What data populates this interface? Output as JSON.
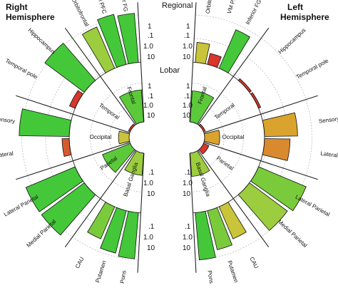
{
  "chart_data": {
    "type": "radial-bar",
    "headings": {
      "right_hemisphere": [
        "Right",
        "Hemisphere"
      ],
      "left_hemisphere": [
        "Left",
        "Hemisphere"
      ],
      "regional": "Regional",
      "lobar": "Lobar"
    },
    "scale": {
      "type": "log",
      "ticks": [
        ".1",
        "1.0",
        "10"
      ],
      "regional_axis": [
        "1",
        ".1",
        "1.0",
        "10"
      ],
      "lobar_axis": [
        "1",
        ".1",
        "1.0",
        "10"
      ],
      "lower_axis": [
        ".1",
        "1.0",
        "10",
        ".1",
        "1.0",
        "10"
      ]
    },
    "right_lobar": [
      {
        "label": "Frontal",
        "value": 4.5,
        "color": "#5cc93a"
      },
      {
        "label": "Temporal",
        "value": 0.12,
        "color": "#d8362b"
      },
      {
        "label": "Occipital",
        "value": 0.35,
        "color": "#c9c43a"
      },
      {
        "label": "Parietal",
        "value": 3.5,
        "color": "#5cc93a"
      },
      {
        "label": "Basal Ganglia",
        "value": 1.4,
        "color": "#9ccd3e"
      }
    ],
    "left_lobar": [
      {
        "label": "Frontal",
        "value": 4.0,
        "color": "#5cc93a"
      },
      {
        "label": "Temporal",
        "value": 0.1,
        "color": "#d8362b"
      },
      {
        "label": "Occipital",
        "value": 0.6,
        "color": "#d9a32e"
      },
      {
        "label": "Parietal",
        "value": 0.2,
        "color": "#d8362b"
      },
      {
        "label": "Basal Ganglia",
        "value": 1.6,
        "color": "#9ccd3e"
      }
    ],
    "right_regional": [
      {
        "label": "Inferior FG",
        "value": 12,
        "color": "#45c73a"
      },
      {
        "label": "VM PFC",
        "value": 15,
        "color": "#45c73a"
      },
      {
        "label": "Orbitofrontal",
        "value": 8,
        "color": "#9ccd3e"
      },
      {
        "label": "Hippocampus",
        "value": 12,
        "color": "#45c73a"
      },
      {
        "label": "Temporal pole",
        "value": 0.18,
        "color": "#d8362b"
      },
      {
        "label": "Sensory",
        "value": 13,
        "color": "#45c73a"
      },
      {
        "label": "Lateral",
        "value": 0.2,
        "color": "#d65a2e"
      },
      {
        "label": "Lateral Parietal",
        "value": 18,
        "color": "#45c73a"
      },
      {
        "label": "Medial Parietal",
        "value": 18,
        "color": "#45c73a"
      },
      {
        "label": "CAU",
        "value": 3,
        "color": "#7acb3c"
      },
      {
        "label": "Putamen",
        "value": 7,
        "color": "#45c73a"
      },
      {
        "label": "Pons",
        "value": 9,
        "color": "#45c73a"
      }
    ],
    "left_regional": [
      {
        "label": "Orbitofrontal",
        "value": 0.7,
        "color": "#c9c43a"
      },
      {
        "label": "VM PFC",
        "value": 0.3,
        "color": "#d8362b"
      },
      {
        "label": "Inferior FG",
        "value": 6,
        "color": "#45c73a"
      },
      {
        "label": "Hippocampus",
        "value": 0.12,
        "color": "#d8362b"
      },
      {
        "label": "Temporal pole",
        "value": 0.12,
        "color": "#d8362b"
      },
      {
        "label": "Sensory",
        "value": 2.5,
        "color": "#d9a32e"
      },
      {
        "label": "Lateral",
        "value": 1.2,
        "color": "#d98a2e"
      },
      {
        "label": "Lateral Parietal",
        "value": 15,
        "color": "#7acb3c"
      },
      {
        "label": "Medial Parietal",
        "value": 10,
        "color": "#9ccd3e"
      },
      {
        "label": "CAU",
        "value": 3,
        "color": "#c9c43a"
      },
      {
        "label": "Putamen",
        "value": 5,
        "color": "#7acb3c"
      },
      {
        "label": "Pons",
        "value": 10,
        "color": "#45c73a"
      }
    ]
  }
}
